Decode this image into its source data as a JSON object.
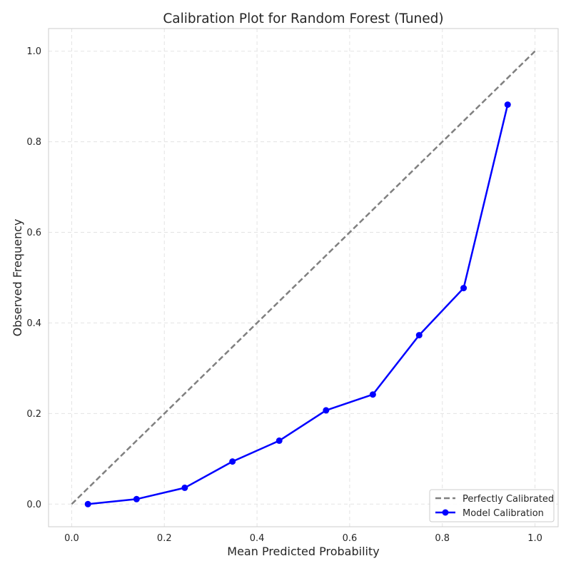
{
  "chart_data": {
    "type": "line",
    "title": "Calibration Plot for Random Forest (Tuned)",
    "xlabel": "Mean Predicted Probability",
    "ylabel": "Observed Frequency",
    "xlim": [
      -0.05,
      1.05
    ],
    "ylim": [
      -0.05,
      1.05
    ],
    "xticks": [
      "0.0",
      "0.2",
      "0.4",
      "0.6",
      "0.8",
      "1.0"
    ],
    "yticks": [
      "0.0",
      "0.2",
      "0.4",
      "0.6",
      "0.8",
      "1.0"
    ],
    "grid": true,
    "legend_position": "bottom-right",
    "series": [
      {
        "name": "Perfectly Calibrated",
        "style": "dashed",
        "color": "#808080",
        "x": [
          0.0,
          1.0
        ],
        "y": [
          0.0,
          1.0
        ]
      },
      {
        "name": "Model Calibration",
        "style": "solid-markers",
        "color": "#0000ff",
        "x": [
          0.035,
          0.14,
          0.244,
          0.347,
          0.448,
          0.549,
          0.65,
          0.75,
          0.846,
          0.941
        ],
        "y": [
          0.0,
          0.011,
          0.036,
          0.094,
          0.14,
          0.207,
          0.242,
          0.373,
          0.477,
          0.882
        ]
      }
    ]
  }
}
